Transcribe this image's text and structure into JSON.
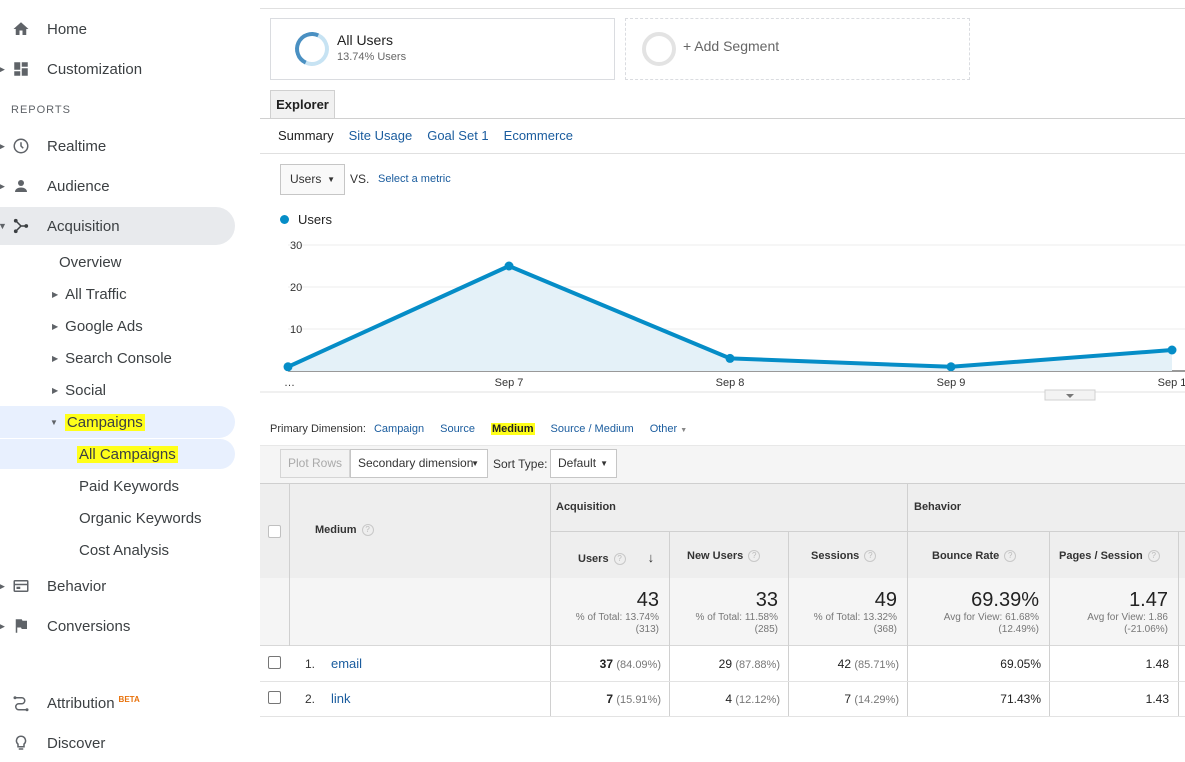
{
  "sidebar": {
    "home": "Home",
    "customization": "Customization",
    "reports_header": "REPORTS",
    "realtime": "Realtime",
    "audience": "Audience",
    "acquisition": "Acquisition",
    "overview": "Overview",
    "all_traffic": "All Traffic",
    "google_ads": "Google Ads",
    "search_console": "Search Console",
    "social": "Social",
    "campaigns": "Campaigns",
    "all_campaigns": "All Campaigns",
    "paid_keywords": "Paid Keywords",
    "organic_keywords": "Organic Keywords",
    "cost_analysis": "Cost Analysis",
    "behavior": "Behavior",
    "conversions": "Conversions",
    "attribution": "Attribution",
    "attribution_badge": "BETA",
    "discover": "Discover"
  },
  "segments": {
    "all_users_title": "All Users",
    "all_users_sub": "13.74% Users",
    "add_segment": "+ Add Segment"
  },
  "explorer": {
    "tab": "Explorer",
    "subtabs": [
      "Summary",
      "Site Usage",
      "Goal Set 1",
      "Ecommerce"
    ]
  },
  "metric": {
    "selected": "Users",
    "vs": "VS.",
    "select_metric": "Select a metric"
  },
  "chart_data": {
    "type": "area",
    "legend": "Users",
    "series": [
      {
        "name": "Users",
        "values": [
          1,
          25,
          3,
          1,
          5
        ]
      }
    ],
    "x": [
      "…",
      "Sep 7",
      "Sep 8",
      "Sep 9",
      "Sep 1"
    ],
    "y_ticks": [
      "30",
      "20",
      "10"
    ],
    "ylim": [
      0,
      30
    ],
    "color": "#058dc7"
  },
  "primary_dimension": {
    "label": "Primary Dimension:",
    "options": [
      "Campaign",
      "Source",
      "Medium",
      "Source / Medium",
      "Other"
    ],
    "selected": "Medium"
  },
  "toolbar": {
    "plot_rows": "Plot Rows",
    "secondary_dimension": "Secondary dimension",
    "sort_type_label": "Sort Type:",
    "sort_type_value": "Default"
  },
  "table": {
    "dim_header": "Medium",
    "group_acquisition": "Acquisition",
    "group_behavior": "Behavior",
    "columns": [
      "Users",
      "New Users",
      "Sessions",
      "Bounce Rate",
      "Pages / Session"
    ],
    "totals": [
      {
        "value": "43",
        "l1": "% of Total: 13.74%",
        "l2": "(313)"
      },
      {
        "value": "33",
        "l1": "% of Total: 11.58%",
        "l2": "(285)"
      },
      {
        "value": "49",
        "l1": "% of Total: 13.32%",
        "l2": "(368)"
      },
      {
        "value": "69.39%",
        "l1": "Avg for View: 61.68%",
        "l2": "(12.49%)"
      },
      {
        "value": "1.47",
        "l1": "Avg for View: 1.86",
        "l2": "(-21.06%)"
      }
    ],
    "rows": [
      {
        "index": "1.",
        "name": "email",
        "users": "37",
        "users_pct": "(84.09%)",
        "new_users": "29",
        "new_users_pct": "(87.88%)",
        "sessions": "42",
        "sessions_pct": "(85.71%)",
        "bounce": "69.05%",
        "pages": "1.48"
      },
      {
        "index": "2.",
        "name": "link",
        "users": "7",
        "users_pct": "(15.91%)",
        "new_users": "4",
        "new_users_pct": "(12.12%)",
        "sessions": "7",
        "sessions_pct": "(14.29%)",
        "bounce": "71.43%",
        "pages": "1.43"
      }
    ]
  }
}
